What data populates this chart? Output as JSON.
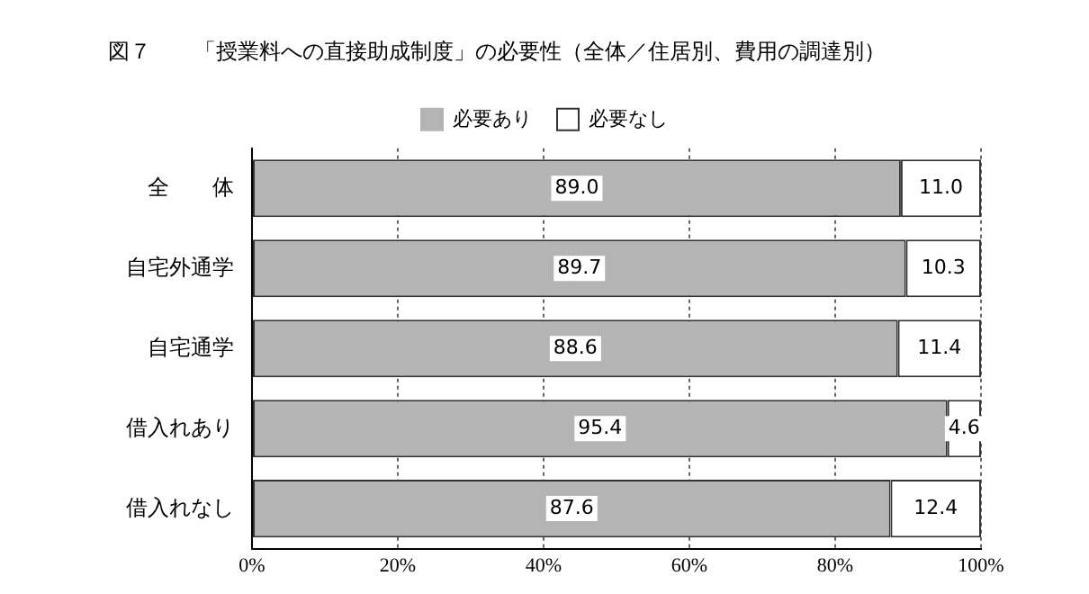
{
  "chart_data": {
    "type": "bar",
    "orientation": "horizontal",
    "stacked": true,
    "title": "図７　　「授業料への直接助成制度」の必要性（全体／住居別、費用の調達別）",
    "categories": [
      "全　　体",
      "自宅外通学",
      "自宅通学",
      "借入れあり",
      "借入れなし"
    ],
    "series": [
      {
        "name": "必要あり",
        "color": "#b4b4b4",
        "values": [
          89.0,
          89.7,
          88.6,
          95.4,
          87.6
        ],
        "value_labels": [
          "89.0",
          "89.7",
          "88.6",
          "95.4",
          "87.6"
        ]
      },
      {
        "name": "必要なし",
        "color": "#ffffff",
        "values": [
          11.0,
          10.3,
          11.4,
          4.6,
          12.4
        ],
        "value_labels": [
          "11.0",
          "10.3",
          "11.4",
          "4.6",
          "12.4"
        ]
      }
    ],
    "xlim": [
      0,
      100
    ],
    "xticks": [
      {
        "value": 0,
        "label": "0%"
      },
      {
        "value": 20,
        "label": "20%"
      },
      {
        "value": 40,
        "label": "40%"
      },
      {
        "value": 60,
        "label": "60%"
      },
      {
        "value": 80,
        "label": "80%"
      },
      {
        "value": 100,
        "label": "100%"
      }
    ],
    "grid": "x",
    "legend": "top"
  }
}
